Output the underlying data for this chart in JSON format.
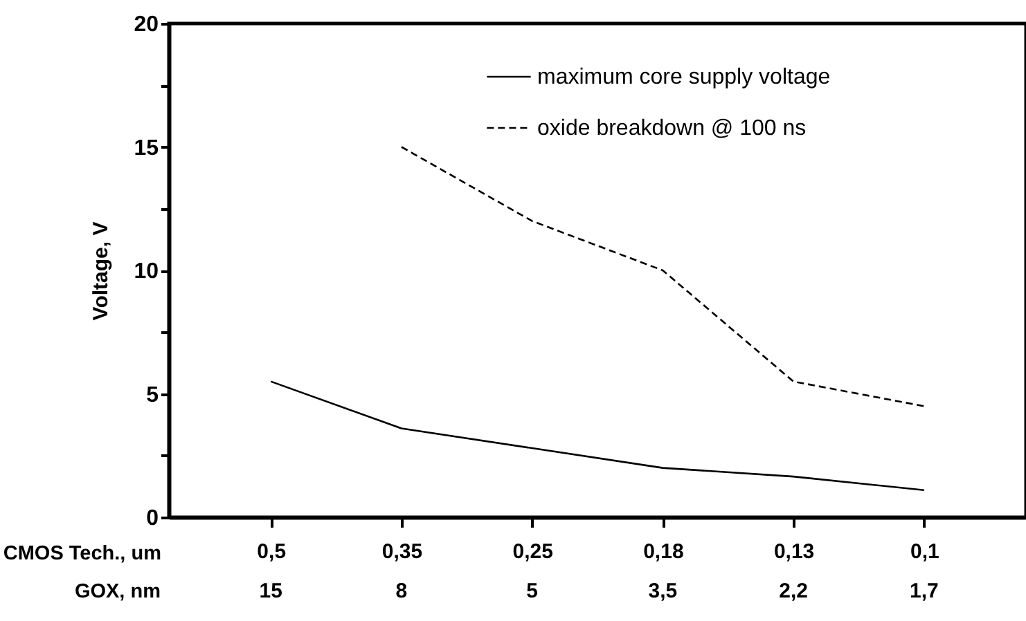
{
  "chart_data": {
    "type": "line",
    "xlabel": "CMOS Tech., um",
    "ylabel": "Voltage, V",
    "categories": [
      "0,5",
      "0,35",
      "0,25",
      "0,18",
      "0,13",
      "0,1"
    ],
    "series": [
      {
        "name": "maximum core supply voltage",
        "color": "#000000",
        "line_style": "solid",
        "values": [
          5.5,
          3.6,
          2.8,
          2.0,
          1.65,
          1.1
        ]
      },
      {
        "name": "oxide breakdown @ 100 ns",
        "color": "#000000",
        "line_style": "dashed",
        "values": [
          null,
          15,
          12,
          10,
          5.5,
          4.5
        ]
      }
    ],
    "ylim": [
      0,
      20
    ],
    "yticks": [
      0,
      {
        "value": 2.5,
        "label": null
      },
      5,
      {
        "value": 7.5,
        "label": null
      },
      10,
      {
        "value": 12.5,
        "label": null
      },
      15,
      {
        "value": 17.5,
        "label": null
      },
      20
    ],
    "annotations": [
      "GOX, nm",
      "15",
      "8",
      "5",
      "3,5",
      "2,2",
      "1,7"
    ],
    "legend": "top right",
    "grid": false
  }
}
